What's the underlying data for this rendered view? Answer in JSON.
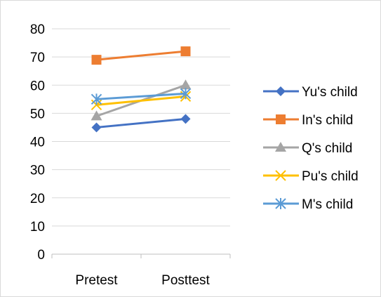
{
  "chart_data": {
    "type": "line",
    "categories": [
      "Pretest",
      "Posttest"
    ],
    "ylim": [
      0,
      80
    ],
    "ytick_step": 10,
    "grid": true,
    "legend_position": "right",
    "series": [
      {
        "name": "Yu's child",
        "values": [
          45,
          48
        ],
        "color": "#4472c4",
        "marker": "diamond"
      },
      {
        "name": "In's child",
        "values": [
          69,
          72
        ],
        "color": "#ed7d31",
        "marker": "square"
      },
      {
        "name": "Q's child",
        "values": [
          49,
          60
        ],
        "color": "#a5a5a5",
        "marker": "triangle"
      },
      {
        "name": "Pu's child",
        "values": [
          53,
          56
        ],
        "color": "#ffc000",
        "marker": "x"
      },
      {
        "name": "M's child",
        "values": [
          55,
          57
        ],
        "color": "#5b9bd5",
        "marker": "star"
      }
    ]
  }
}
